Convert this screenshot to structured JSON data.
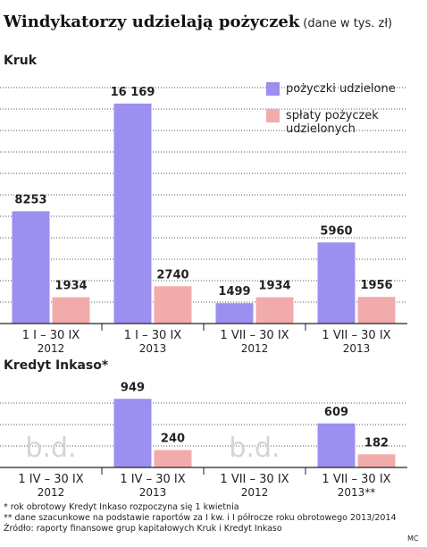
{
  "title": "Windykatorzy udzielają pożyczek",
  "subtitle": "(dane w tys. zł)",
  "chart_data": [
    {
      "type": "bar",
      "title": "Kruk",
      "categories": [
        [
          "1 I – 30 IX",
          "2012"
        ],
        [
          "1 I – 30 IX",
          "2013"
        ],
        [
          "1 VII – 30 IX",
          "2012"
        ],
        [
          "1 VII – 30 IX",
          "2013"
        ]
      ],
      "series": [
        {
          "name": "pożyczki udzielone",
          "color": "#9b8ff0",
          "values": [
            8253,
            16169,
            1499,
            5960
          ],
          "value_labels": [
            "8253",
            "16 169",
            "1499",
            "5960"
          ]
        },
        {
          "name": "spłaty pożyczek udzielonych",
          "color": "#f2abab",
          "values": [
            1934,
            2740,
            1934,
            1956
          ]
        }
      ],
      "ylim": [
        0,
        18000
      ],
      "grid": true,
      "legend": "top-right"
    },
    {
      "type": "bar",
      "title": "Kredyt Inkaso*",
      "categories": [
        [
          "1 IV – 30 IX",
          "2012"
        ],
        [
          "1 IV – 30 IX",
          "2013"
        ],
        [
          "1 VII – 30 IX",
          "2012"
        ],
        [
          "1 VII – 30 IX",
          "2013**"
        ]
      ],
      "series": [
        {
          "name": "pożyczki udzielone",
          "color": "#9b8ff0",
          "values": [
            null,
            949,
            null,
            609
          ]
        },
        {
          "name": "spłaty pożyczek udzielonych",
          "color": "#f2abab",
          "values": [
            null,
            240,
            null,
            182
          ]
        }
      ],
      "no_data_label": "b.d.",
      "ylim": [
        0,
        1150
      ],
      "grid": true
    }
  ],
  "notes": [
    "* rok obrotowy Kredyt Inkaso rozpoczyna się 1 kwietnia",
    "** dane szacunkowe na podstawie raportów za I kw. i I półrocze roku obrotowego 2013/2014",
    "Źródło: raporty finansowe grup kapitałowych Kruk i Kredyt Inkaso"
  ],
  "credit": "MC"
}
